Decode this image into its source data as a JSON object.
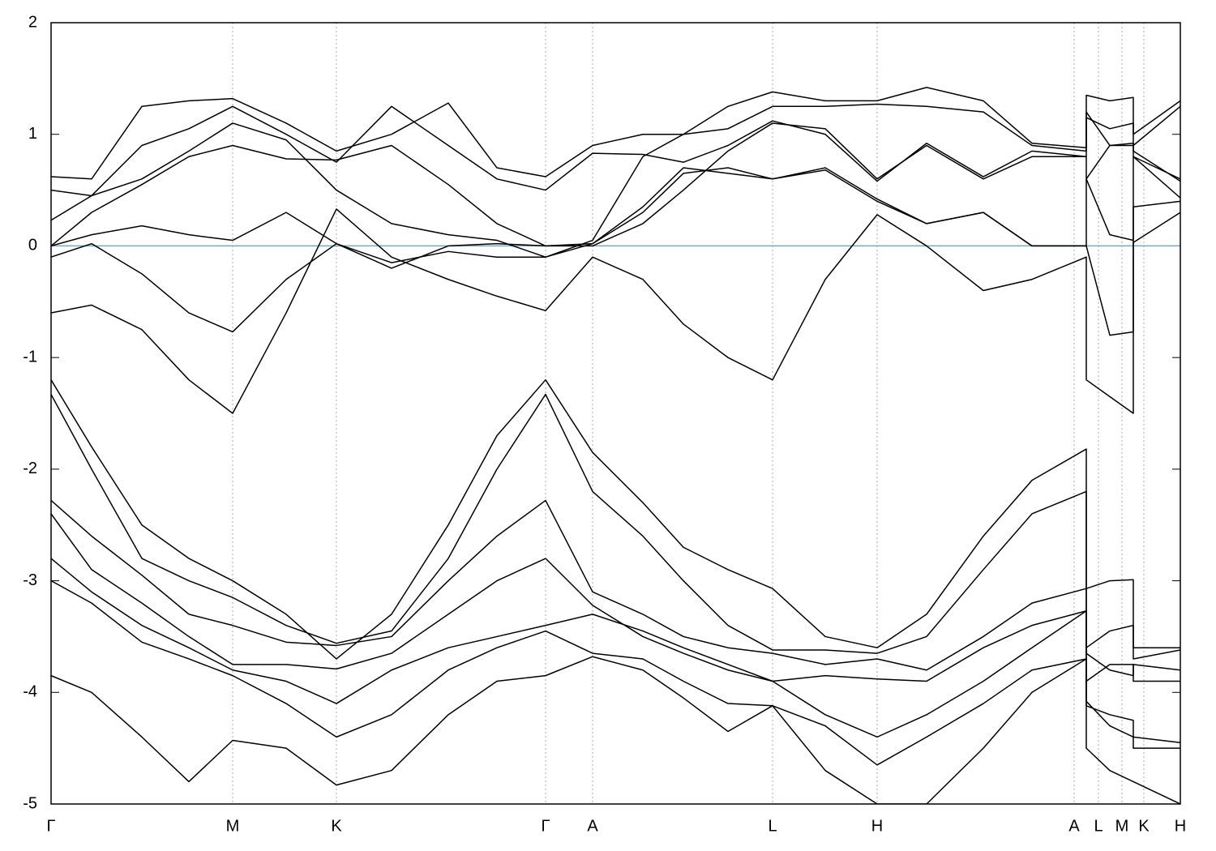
{
  "chart_data": {
    "type": "line",
    "xlim": [
      0,
      13.93
    ],
    "ylim": [
      -5,
      2
    ],
    "yticks": [
      -5,
      -4,
      -3,
      -2,
      -1,
      0,
      1,
      2
    ],
    "xticks": [
      {
        "value": 0,
        "label": "Γ"
      },
      {
        "value": 2.24,
        "label": "M"
      },
      {
        "value": 3.52,
        "label": "K"
      },
      {
        "value": 6.1,
        "label": "Γ"
      },
      {
        "value": 6.68,
        "label": "A"
      },
      {
        "value": 8.9,
        "label": "L"
      },
      {
        "value": 10.19,
        "label": "H"
      },
      {
        "value": 12.62,
        "label": "A"
      },
      {
        "value": 12.92,
        "label": "L"
      },
      {
        "value": 13.21,
        "label": "M"
      },
      {
        "value": 13.48,
        "label": "K"
      },
      {
        "value": 13.93,
        "label": "H"
      }
    ],
    "grid": true,
    "hline": {
      "value": 0,
      "color": "#5fb0c8"
    },
    "x": [
      0,
      0.5,
      1.12,
      1.7,
      2.24,
      2.9,
      3.52,
      4.2,
      4.9,
      5.5,
      6.1,
      6.68,
      7.3,
      7.8,
      8.35,
      8.9,
      9.55,
      10.19,
      10.8,
      11.5,
      12.1,
      12.77,
      12.77,
      13.06,
      13.35,
      13.35,
      13.93
    ],
    "series": [
      {
        "color": "#000000",
        "values": [
          -0.6,
          -0.53,
          -0.75,
          -1.2,
          -1.5,
          -0.6,
          0.33,
          -0.1,
          -0.3,
          -0.45,
          -0.58,
          -0.1,
          -0.3,
          -0.7,
          -1.0,
          -1.2,
          -0.3,
          0.28,
          0.0,
          -0.4,
          -0.3,
          -0.1,
          -1.2,
          -1.35,
          -1.5,
          0.03,
          0.3
        ]
      },
      {
        "color": "#000000",
        "values": [
          -0.1,
          0.02,
          -0.25,
          -0.6,
          -0.77,
          -0.3,
          0.02,
          -0.15,
          -0.05,
          -0.1,
          -0.1,
          0.02,
          0.3,
          0.65,
          0.7,
          0.6,
          0.68,
          0.4,
          0.2,
          0.3,
          0.0,
          0.0,
          0.0,
          -0.8,
          -0.77,
          0.35,
          0.4
        ]
      },
      {
        "color": "#000000",
        "values": [
          0.0,
          0.1,
          0.18,
          0.1,
          0.05,
          0.3,
          0.02,
          -0.2,
          0.0,
          0.02,
          0.0,
          0.0,
          0.2,
          0.5,
          0.85,
          1.1,
          1.05,
          0.6,
          0.9,
          0.6,
          0.8,
          0.8,
          0.6,
          0.1,
          0.05,
          0.8,
          0.6
        ]
      },
      {
        "color": "#000000",
        "values": [
          0.23,
          0.45,
          0.6,
          0.85,
          1.1,
          0.95,
          0.5,
          0.2,
          0.1,
          0.05,
          -0.1,
          0.05,
          0.8,
          1.0,
          1.05,
          1.25,
          1.25,
          1.27,
          1.25,
          1.2,
          0.9,
          0.85,
          1.15,
          1.05,
          1.1,
          0.85,
          0.58
        ]
      },
      {
        "color": "#000000",
        "values": [
          0.5,
          0.45,
          0.9,
          1.05,
          1.25,
          1.0,
          0.75,
          1.25,
          0.9,
          0.6,
          0.5,
          0.83,
          0.82,
          0.75,
          0.9,
          1.12,
          1.0,
          0.58,
          0.92,
          0.62,
          0.85,
          0.8,
          1.2,
          0.9,
          0.9,
          0.9,
          1.25
        ]
      },
      {
        "color": "#000000",
        "values": [
          0.62,
          0.6,
          1.25,
          1.3,
          1.32,
          1.1,
          0.85,
          1.0,
          1.28,
          0.7,
          0.62,
          0.9,
          1.0,
          1.0,
          1.25,
          1.38,
          1.3,
          1.3,
          1.42,
          1.3,
          0.92,
          0.88,
          1.35,
          1.3,
          1.33,
          1.0,
          1.3
        ]
      },
      {
        "color": "#000000",
        "values": [
          0.0,
          0.3,
          0.55,
          0.8,
          0.9,
          0.78,
          0.77,
          0.9,
          0.55,
          0.2,
          0.0,
          0.02,
          0.35,
          0.7,
          0.65,
          0.6,
          0.7,
          0.42,
          0.2,
          0.3,
          0.0,
          0.0,
          0.6,
          0.9,
          0.92,
          0.8,
          0.43
        ]
      },
      {
        "color": "#000000",
        "values": [
          -1.2,
          -1.8,
          -2.5,
          -2.8,
          -3.0,
          -3.3,
          -3.7,
          -3.3,
          -2.5,
          -1.7,
          -1.2,
          -1.85,
          -2.3,
          -2.7,
          -2.9,
          -3.07,
          -3.5,
          -3.6,
          -3.3,
          -2.6,
          -2.1,
          -1.82,
          -3.07,
          -3.0,
          -2.99,
          -3.6,
          -3.6
        ]
      },
      {
        "color": "#000000",
        "values": [
          -1.33,
          -2.0,
          -2.8,
          -3.0,
          -3.15,
          -3.4,
          -3.56,
          -3.45,
          -2.8,
          -2.0,
          -1.33,
          -2.2,
          -2.6,
          -3.0,
          -3.4,
          -3.62,
          -3.62,
          -3.65,
          -3.5,
          -2.9,
          -2.4,
          -2.2,
          -3.6,
          -3.45,
          -3.4,
          -3.7,
          -3.62
        ]
      },
      {
        "color": "#000000",
        "values": [
          -2.28,
          -2.6,
          -2.95,
          -3.3,
          -3.4,
          -3.55,
          -3.58,
          -3.5,
          -3.0,
          -2.6,
          -2.28,
          -3.1,
          -3.3,
          -3.5,
          -3.6,
          -3.65,
          -3.75,
          -3.7,
          -3.8,
          -3.5,
          -3.2,
          -3.07,
          -3.65,
          -3.8,
          -3.85,
          -3.75,
          -3.8
        ]
      },
      {
        "color": "#000000",
        "values": [
          -2.4,
          -2.9,
          -3.2,
          -3.5,
          -3.75,
          -3.75,
          -3.79,
          -3.65,
          -3.3,
          -3.0,
          -2.8,
          -3.22,
          -3.5,
          -3.65,
          -3.8,
          -3.9,
          -3.85,
          -3.88,
          -3.9,
          -3.6,
          -3.4,
          -3.27,
          -3.9,
          -3.75,
          -3.75,
          -3.9,
          -3.9
        ]
      },
      {
        "color": "#000000",
        "values": [
          -2.8,
          -3.1,
          -3.4,
          -3.6,
          -3.8,
          -3.9,
          -4.1,
          -3.8,
          -3.6,
          -3.5,
          -3.4,
          -3.3,
          -3.45,
          -3.6,
          -3.75,
          -3.9,
          -4.2,
          -4.4,
          -4.2,
          -3.9,
          -3.6,
          -3.27,
          -4.08,
          -4.3,
          -4.4,
          -4.4,
          -4.45
        ]
      },
      {
        "color": "#000000",
        "values": [
          -3.0,
          -3.2,
          -3.55,
          -3.7,
          -3.85,
          -4.1,
          -4.4,
          -4.2,
          -3.8,
          -3.6,
          -3.45,
          -3.65,
          -3.7,
          -3.9,
          -4.1,
          -4.12,
          -4.3,
          -4.65,
          -4.4,
          -4.1,
          -3.8,
          -3.7,
          -4.12,
          -4.2,
          -4.25,
          -4.5,
          -4.5
        ]
      },
      {
        "color": "#000000",
        "values": [
          -3.85,
          -4.0,
          -4.4,
          -4.8,
          -4.43,
          -4.5,
          -4.83,
          -4.7,
          -4.2,
          -3.9,
          -3.85,
          -3.68,
          -3.8,
          -4.05,
          -4.35,
          -4.12,
          -4.7,
          -5.0,
          -5.0,
          -4.5,
          -4.0,
          -3.7,
          -4.5,
          -4.7,
          -4.8,
          -4.8,
          -5.0
        ]
      }
    ]
  }
}
